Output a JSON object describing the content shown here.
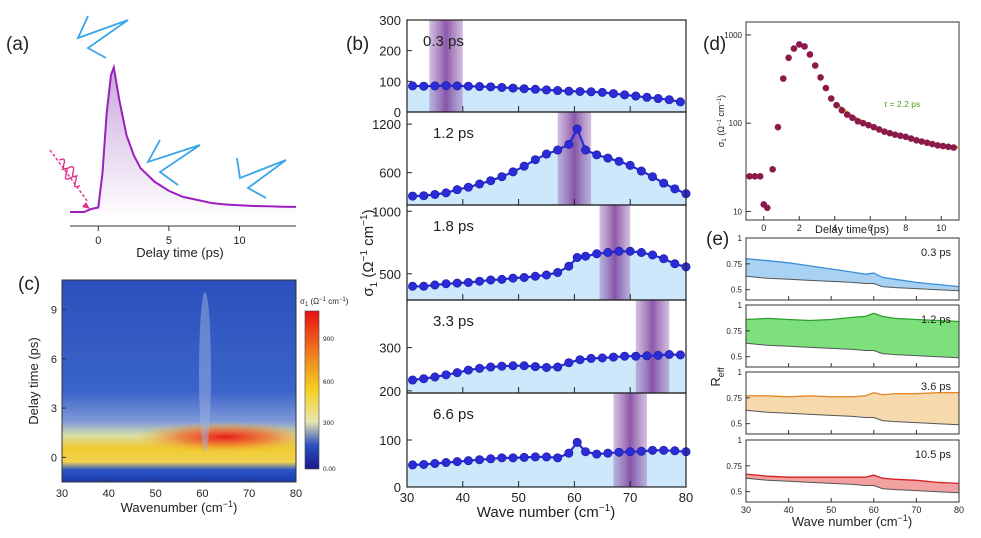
{
  "figure": {
    "panel_labels": [
      "(a)",
      "(b)",
      "(c)",
      "(d)",
      "(e)"
    ]
  },
  "colors": {
    "purple": "#9b1fbd",
    "blue_marker": "#2b2bd8",
    "light_blue_fill": "#cde8fb",
    "band": "#7a3a99",
    "maroon": "#8b1a4a",
    "fit": "#d8a028",
    "pulse_blue": "#3aa5e8",
    "pump_pink": "#e0308c"
  },
  "chart_data": [
    {
      "id": "a",
      "type": "line",
      "xlabel": "Delay time (ps)",
      "xticks": [
        0,
        5,
        10
      ],
      "xlim": [
        -2,
        14
      ],
      "ylim": [
        0,
        1.05
      ],
      "x": [
        -2,
        -1,
        -0.5,
        0,
        0.3,
        0.6,
        0.9,
        1.1,
        1.5,
        2,
        2.5,
        3,
        4,
        5,
        6,
        7,
        8,
        9,
        10,
        11,
        12,
        13,
        14
      ],
      "y": [
        0.04,
        0.04,
        0.06,
        0.07,
        0.3,
        0.7,
        0.95,
        1.0,
        0.78,
        0.55,
        0.42,
        0.33,
        0.24,
        0.18,
        0.14,
        0.12,
        0.1,
        0.09,
        0.085,
        0.08,
        0.078,
        0.075,
        0.074
      ]
    },
    {
      "id": "b",
      "type": "line",
      "xlabel": "Wave number (cm",
      "xlabel_sup": "−1",
      "xlabel_end": ")",
      "ylabel": "σ",
      "ylabel_sub": "1",
      "ylabel_unit": " (Ω",
      "ylabel_sup1": "−1",
      "ylabel_mid": " cm",
      "ylabel_sup2": "−1",
      "ylabel_end": ")",
      "xlim": [
        30,
        80
      ],
      "xticks": [
        30,
        40,
        50,
        60,
        70,
        80
      ],
      "panels": [
        {
          "label": "0.3 ps",
          "ylim": [
            0,
            300
          ],
          "yticks": [
            0,
            100,
            200,
            300
          ],
          "band": [
            34,
            40
          ],
          "x": [
            31,
            33,
            35,
            37,
            39,
            41,
            43,
            45,
            47,
            49,
            51,
            53,
            55,
            57,
            59,
            61,
            63,
            65,
            67,
            69,
            71,
            73,
            75,
            77,
            79
          ],
          "y": [
            85,
            84,
            85,
            86,
            85,
            84,
            83,
            82,
            80,
            78,
            76,
            74,
            72,
            70,
            68,
            67,
            66,
            64,
            60,
            56,
            52,
            48,
            44,
            40,
            33
          ]
        },
        {
          "label": "1.2 ps",
          "ylim": [
            200,
            1350
          ],
          "yticks": [
            600,
            1200
          ],
          "band": [
            57,
            63
          ],
          "x": [
            31,
            33,
            35,
            37,
            39,
            41,
            43,
            45,
            47,
            49,
            51,
            53,
            55,
            57,
            59,
            60.5,
            62,
            64,
            66,
            68,
            70,
            72,
            74,
            76,
            78,
            80
          ],
          "y": [
            310,
            315,
            330,
            350,
            390,
            420,
            460,
            500,
            550,
            610,
            680,
            760,
            830,
            880,
            950,
            1140,
            880,
            820,
            780,
            740,
            690,
            620,
            550,
            470,
            400,
            340
          ]
        },
        {
          "label": "1.8 ps",
          "ylim": [
            290,
            1050
          ],
          "yticks": [
            500,
            1000
          ],
          "band": [
            64.5,
            70
          ],
          "x": [
            31,
            33,
            35,
            37,
            39,
            41,
            43,
            45,
            47,
            49,
            51,
            53,
            55,
            57,
            59,
            60.5,
            62,
            64,
            66,
            68,
            70,
            72,
            74,
            76,
            78,
            80
          ],
          "y": [
            400,
            400,
            410,
            420,
            425,
            430,
            440,
            450,
            455,
            465,
            470,
            480,
            490,
            510,
            560,
            630,
            640,
            660,
            670,
            680,
            680,
            670,
            650,
            620,
            580,
            555
          ]
        },
        {
          "label": "3.3 ps",
          "ylim": [
            195,
            410
          ],
          "yticks": [
            200,
            300
          ],
          "band": [
            71,
            77
          ],
          "x": [
            31,
            33,
            35,
            37,
            39,
            41,
            43,
            45,
            47,
            49,
            51,
            53,
            55,
            57,
            59,
            61,
            63,
            65,
            67,
            69,
            71,
            73,
            75,
            77,
            79
          ],
          "y": [
            225,
            228,
            232,
            237,
            242,
            248,
            252,
            255,
            257,
            258,
            258,
            256,
            254,
            255,
            265,
            272,
            275,
            276,
            278,
            280,
            280,
            281,
            282,
            284,
            283
          ]
        },
        {
          "label": "6.6 ps",
          "ylim": [
            0,
            200
          ],
          "yticks": [
            0,
            100
          ],
          "band": [
            67,
            73
          ],
          "x": [
            31,
            33,
            35,
            37,
            39,
            41,
            43,
            45,
            47,
            49,
            51,
            53,
            55,
            57,
            59,
            60.5,
            62,
            64,
            66,
            68,
            70,
            72,
            74,
            76,
            78,
            80
          ],
          "y": [
            47,
            48,
            50,
            52,
            54,
            56,
            58,
            60,
            62,
            62,
            63,
            64,
            64,
            62,
            72,
            95,
            75,
            70,
            72,
            74,
            75,
            76,
            78,
            78,
            77,
            75
          ]
        }
      ]
    },
    {
      "id": "c",
      "type": "heatmap",
      "xlabel": "Wavenumber (cm",
      "xlabel_sup": "−1",
      "xlabel_end": ")",
      "ylabel": "Delay time (ps)",
      "xlim": [
        30,
        80
      ],
      "ylim": [
        -1.5,
        10.8
      ],
      "xticks": [
        30,
        40,
        50,
        60,
        70,
        80
      ],
      "yticks": [
        0,
        3,
        6,
        9
      ],
      "colorbar_label": "σ",
      "colorbar_sub": "1",
      "colorbar_unit": " (Ω",
      "colorbar_sup1": "−1",
      "colorbar_mid": " cm",
      "colorbar_sup2": "−1",
      "colorbar_end": ")",
      "colorbar_ticks": [
        "0.00",
        "300",
        "600",
        "900"
      ]
    },
    {
      "id": "d",
      "type": "scatter",
      "xlabel": "Delay time (ps)",
      "ylabel": "σ",
      "ylabel_sub": "1",
      "ylabel_unit": " (Ω",
      "ylabel_sup1": "−1",
      "ylabel_mid": " cm",
      "ylabel_sup2": "−1",
      "ylabel_end": ")",
      "yscale": "log",
      "ylim": [
        8,
        1400
      ],
      "xlim": [
        -1,
        11
      ],
      "xticks": [
        0,
        2,
        4,
        6,
        8,
        10
      ],
      "yticks": [
        10,
        100,
        1000
      ],
      "annotation": "τ = 2.2 ps",
      "x": [
        -0.8,
        -0.5,
        -0.2,
        0,
        0.2,
        0.5,
        0.8,
        1.1,
        1.4,
        1.7,
        2.0,
        2.3,
        2.6,
        2.9,
        3.2,
        3.5,
        3.8,
        4.1,
        4.4,
        4.7,
        5.0,
        5.3,
        5.6,
        5.9,
        6.2,
        6.5,
        6.8,
        7.1,
        7.4,
        7.7,
        8.0,
        8.3,
        8.6,
        8.9,
        9.2,
        9.5,
        9.8,
        10.1,
        10.4,
        10.7
      ],
      "y": [
        25,
        25,
        25,
        12,
        11,
        30,
        90,
        320,
        550,
        700,
        780,
        740,
        600,
        450,
        330,
        250,
        190,
        160,
        140,
        125,
        115,
        105,
        100,
        95,
        90,
        85,
        80,
        77,
        74,
        72,
        70,
        67,
        64,
        62,
        60,
        58,
        56,
        55,
        54,
        53
      ],
      "fit_x": [
        4.0,
        5,
        6,
        7,
        8,
        9,
        10,
        11
      ],
      "fit_y": [
        170,
        120,
        95,
        80,
        70,
        62,
        57,
        53
      ]
    },
    {
      "id": "e",
      "type": "area",
      "xlabel": "Wave number (cm",
      "xlabel_sup": "−1",
      "xlabel_end": ")",
      "ylabel": "R",
      "ylabel_sub": "eff",
      "xlim": [
        30,
        80
      ],
      "ylim": [
        0.4,
        1.0
      ],
      "xticks": [
        30,
        40,
        50,
        60,
        70,
        80
      ],
      "yticks": [
        0.5,
        0.75,
        1
      ],
      "panels": [
        {
          "label": "0.3 ps",
          "fill": "#a9d2f2",
          "line": "#3a8fd8",
          "x": [
            30,
            35,
            40,
            45,
            50,
            55,
            58,
            60,
            62,
            65,
            70,
            75,
            80
          ],
          "top": [
            0.8,
            0.78,
            0.76,
            0.73,
            0.7,
            0.67,
            0.65,
            0.66,
            0.62,
            0.6,
            0.57,
            0.55,
            0.53
          ],
          "bottom": [
            0.63,
            0.61,
            0.6,
            0.59,
            0.58,
            0.57,
            0.56,
            0.56,
            0.53,
            0.52,
            0.51,
            0.5,
            0.49
          ]
        },
        {
          "label": "1.2 ps",
          "fill": "#7de07d",
          "line": "#2e9e2e",
          "x": [
            30,
            35,
            40,
            45,
            50,
            55,
            58,
            60,
            62,
            65,
            70,
            75,
            80
          ],
          "top": [
            0.86,
            0.87,
            0.86,
            0.85,
            0.86,
            0.88,
            0.89,
            0.92,
            0.89,
            0.87,
            0.86,
            0.85,
            0.84
          ],
          "bottom": [
            0.63,
            0.61,
            0.6,
            0.59,
            0.58,
            0.57,
            0.56,
            0.56,
            0.53,
            0.52,
            0.51,
            0.5,
            0.49
          ]
        },
        {
          "label": "3.6 ps",
          "fill": "#f7d9ae",
          "line": "#e58a2a",
          "x": [
            30,
            35,
            40,
            45,
            50,
            55,
            58,
            60,
            62,
            65,
            70,
            75,
            80
          ],
          "top": [
            0.77,
            0.77,
            0.76,
            0.77,
            0.76,
            0.76,
            0.77,
            0.8,
            0.78,
            0.79,
            0.79,
            0.8,
            0.8
          ],
          "bottom": [
            0.63,
            0.61,
            0.6,
            0.59,
            0.58,
            0.57,
            0.56,
            0.56,
            0.53,
            0.52,
            0.51,
            0.5,
            0.49
          ]
        },
        {
          "label": "10.5 ps",
          "fill": "#f2a0a0",
          "line": "#d42020",
          "x": [
            30,
            35,
            40,
            45,
            50,
            55,
            58,
            60,
            62,
            65,
            70,
            75,
            80
          ],
          "top": [
            0.67,
            0.65,
            0.64,
            0.64,
            0.64,
            0.64,
            0.64,
            0.66,
            0.63,
            0.62,
            0.61,
            0.59,
            0.58
          ],
          "bottom": [
            0.63,
            0.61,
            0.6,
            0.59,
            0.58,
            0.57,
            0.56,
            0.56,
            0.53,
            0.52,
            0.51,
            0.5,
            0.49
          ]
        }
      ]
    }
  ]
}
